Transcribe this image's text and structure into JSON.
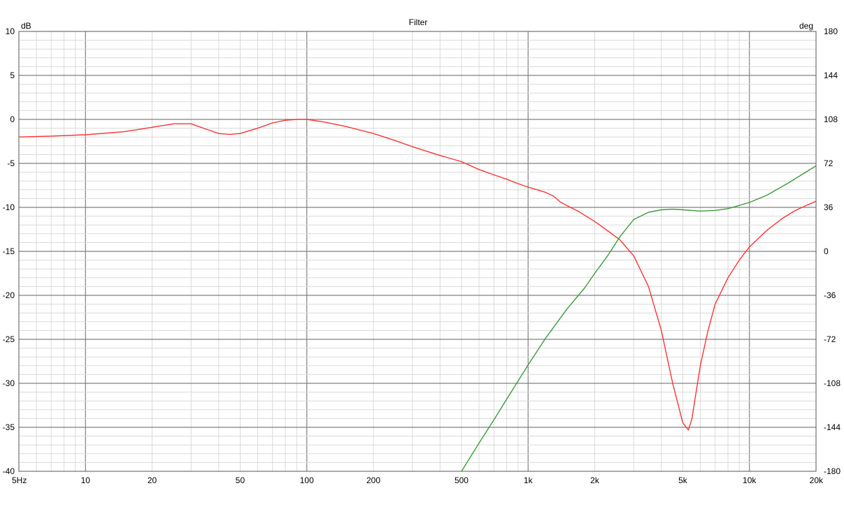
{
  "chart_data": {
    "type": "line",
    "title": "Filter",
    "x_scale": "log",
    "xlim": [
      5,
      20000
    ],
    "ylim_left": [
      -40,
      10
    ],
    "ylim_right": [
      -180,
      180
    ],
    "y_left_unit": "dB",
    "y_right_unit": "deg",
    "x_ticks": [
      {
        "value": 5,
        "label": "5Hz"
      },
      {
        "value": 10,
        "label": "10"
      },
      {
        "value": 20,
        "label": "20"
      },
      {
        "value": 50,
        "label": "50"
      },
      {
        "value": 100,
        "label": "100"
      },
      {
        "value": 200,
        "label": "200"
      },
      {
        "value": 500,
        "label": "500"
      },
      {
        "value": 1000,
        "label": "1k"
      },
      {
        "value": 2000,
        "label": "2k"
      },
      {
        "value": 5000,
        "label": "5k"
      },
      {
        "value": 10000,
        "label": "10k"
      },
      {
        "value": 20000,
        "label": "20k"
      }
    ],
    "y_left_ticks": [
      {
        "value": 10,
        "label": "10"
      },
      {
        "value": 5,
        "label": "5"
      },
      {
        "value": 0,
        "label": "0"
      },
      {
        "value": -5,
        "label": "-5"
      },
      {
        "value": -10,
        "label": "-10"
      },
      {
        "value": -15,
        "label": "-15"
      },
      {
        "value": -20,
        "label": "-20"
      },
      {
        "value": -25,
        "label": "-25"
      },
      {
        "value": -30,
        "label": "-30"
      },
      {
        "value": -35,
        "label": "-35"
      },
      {
        "value": -40,
        "label": "-40"
      }
    ],
    "y_right_ticks": [
      {
        "value": 180,
        "label": "180"
      },
      {
        "value": 144,
        "label": "144"
      },
      {
        "value": 108,
        "label": "108"
      },
      {
        "value": 72,
        "label": "72"
      },
      {
        "value": 36,
        "label": "36"
      },
      {
        "value": 0,
        "label": "0"
      },
      {
        "value": -36,
        "label": "-36"
      },
      {
        "value": -72,
        "label": "-72"
      },
      {
        "value": -108,
        "label": "-108"
      },
      {
        "value": -144,
        "label": "-144"
      },
      {
        "value": -180,
        "label": "-180"
      }
    ],
    "grid": true,
    "series": [
      {
        "color": "#ff3333",
        "axis": "left",
        "x": [
          5,
          7,
          10,
          15,
          20,
          25,
          30,
          35,
          40,
          45,
          50,
          60,
          70,
          80,
          90,
          100,
          120,
          150,
          200,
          250,
          300,
          400,
          500,
          600,
          700,
          800,
          900,
          1000,
          1100,
          1200,
          1300,
          1400,
          1500,
          1700,
          2000,
          2300,
          2600,
          3000,
          3500,
          4000,
          4500,
          5000,
          5300,
          5500,
          5700,
          6000,
          6500,
          7000,
          8000,
          9000,
          10000,
          12000,
          14000,
          16000,
          18000,
          20000
        ],
        "y": [
          -2.0,
          -1.9,
          -1.75,
          -1.4,
          -0.9,
          -0.5,
          -0.5,
          -1.1,
          -1.6,
          -1.7,
          -1.6,
          -1.0,
          -0.4,
          -0.1,
          0.0,
          0.0,
          -0.3,
          -0.8,
          -1.6,
          -2.4,
          -3.1,
          -4.1,
          -4.8,
          -5.7,
          -6.3,
          -6.8,
          -7.3,
          -7.7,
          -8.0,
          -8.3,
          -8.7,
          -9.4,
          -9.8,
          -10.5,
          -11.6,
          -12.7,
          -13.7,
          -15.5,
          -19.0,
          -24.0,
          -30.0,
          -34.5,
          -35.3,
          -34.0,
          -31.5,
          -28.0,
          -24.0,
          -21.0,
          -18.0,
          -16.0,
          -14.5,
          -12.6,
          -11.3,
          -10.4,
          -9.8,
          -9.3
        ]
      },
      {
        "color": "#3a9c3a",
        "axis": "right",
        "x": [
          500,
          600,
          700,
          800,
          1000,
          1200,
          1500,
          1800,
          2000,
          2300,
          2600,
          3000,
          3500,
          4000,
          4500,
          5000,
          6000,
          7000,
          8000,
          10000,
          12000,
          15000,
          20000
        ],
        "y": [
          -180,
          -157,
          -138,
          -121,
          -93,
          -71,
          -47,
          -30,
          -18,
          -3,
          12,
          26,
          32,
          34,
          34.5,
          34,
          33,
          33.5,
          35,
          40,
          46,
          56,
          70
        ]
      }
    ]
  }
}
